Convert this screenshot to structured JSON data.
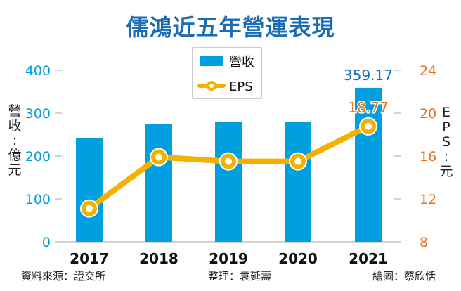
{
  "chart_data": {
    "type": "bar+line",
    "title": "儒鴻近五年營運表現",
    "categories": [
      "2017",
      "2018",
      "2019",
      "2020",
      "2021"
    ],
    "series": [
      {
        "name": "營收",
        "type": "bar",
        "axis": "left",
        "values": [
          241,
          275,
          280,
          280,
          359.17
        ],
        "color": "#009fe0"
      },
      {
        "name": "EPS",
        "type": "line",
        "axis": "right",
        "values": [
          11.1,
          15.9,
          15.5,
          15.5,
          18.77
        ],
        "color": "#f5b100"
      }
    ],
    "data_labels": {
      "bar_2021": "359.17",
      "eps_2021": "18.77"
    },
    "ylabel_left": "營收：億元",
    "ylabel_right": "EPS：元",
    "ylim_left": [
      0,
      400
    ],
    "yticks_left": [
      "0",
      "100",
      "200",
      "300",
      "400"
    ],
    "ylim_right": [
      8,
      24
    ],
    "yticks_right": [
      "8",
      "12",
      "16",
      "20",
      "24"
    ],
    "legend_position": "top-center",
    "grid": false,
    "colors": {
      "title": "#1a6db5",
      "left_axis": "#009fe0",
      "right_axis": "#e5731d",
      "label_bar": "#1a6db5",
      "label_eps": "#e5731d"
    }
  },
  "footer": {
    "source": "資料來源：證交所",
    "editor": "整理：袁延壽",
    "artist": "繪圖：蔡欣恬"
  }
}
